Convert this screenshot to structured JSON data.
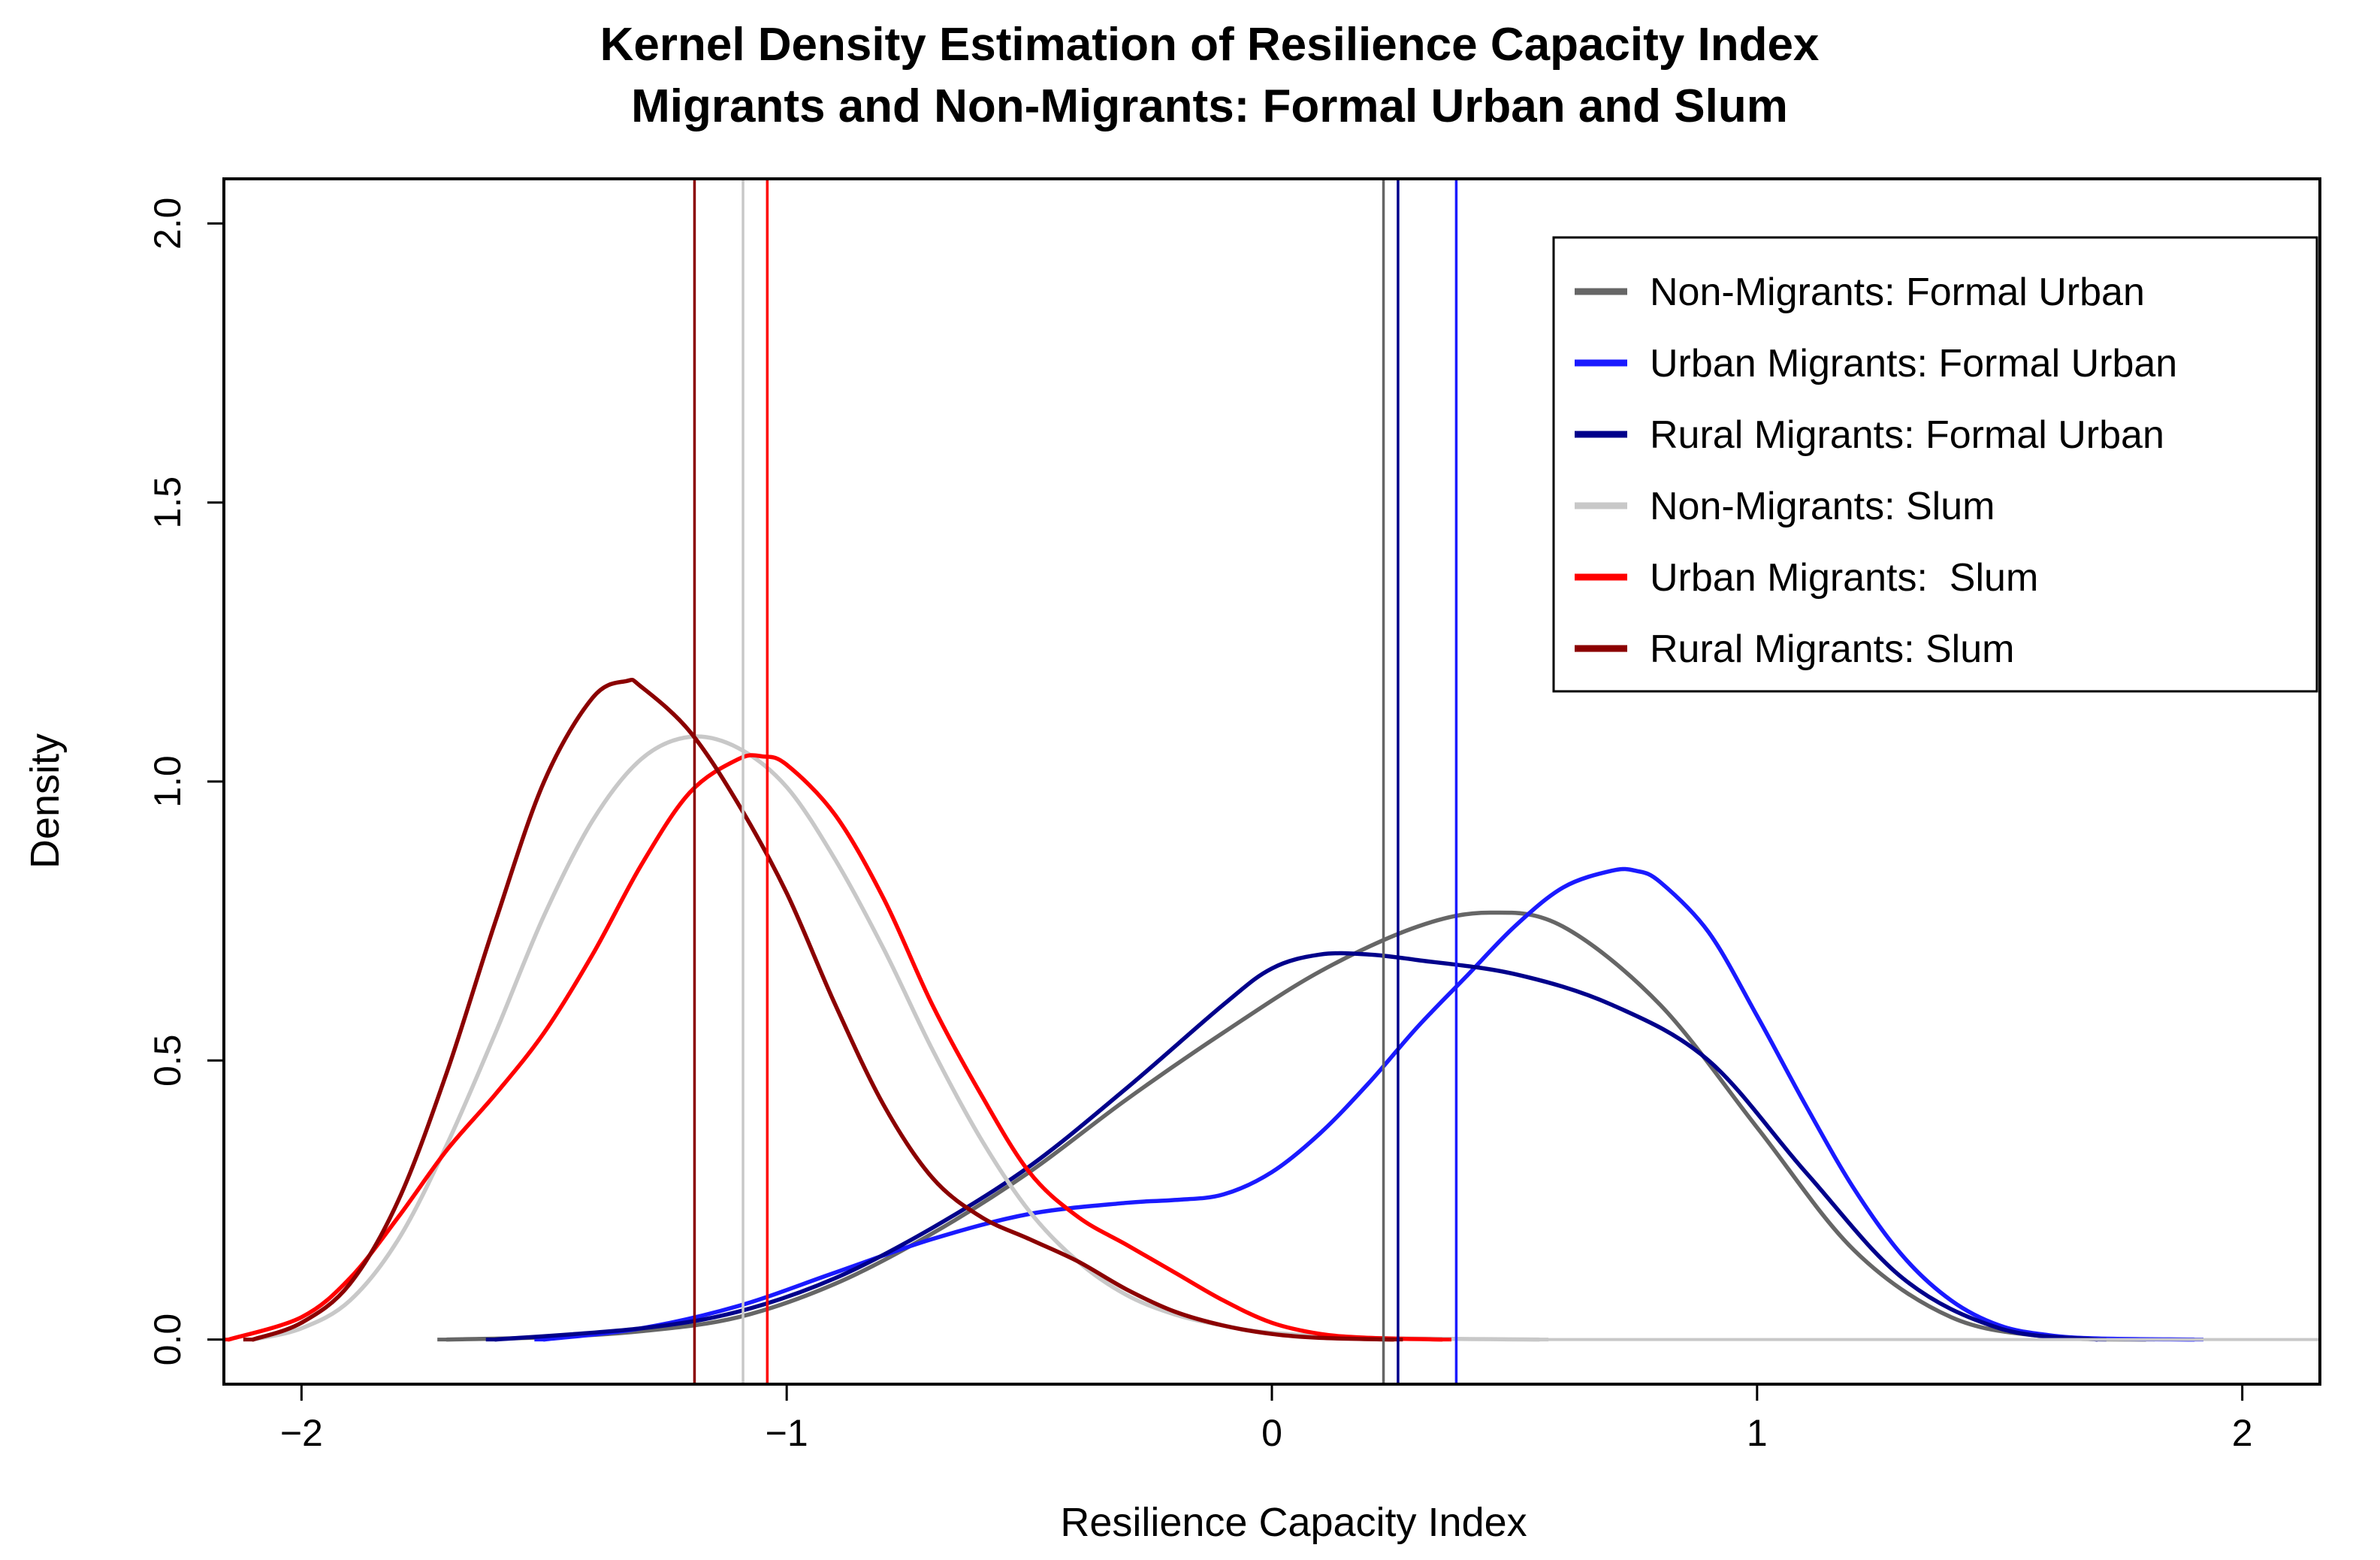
{
  "chart_data": {
    "type": "line",
    "title": "Kernel Density Estimation of Resilience Capacity Index",
    "subtitle": "Migrants and Non-Migrants: Formal Urban and Slum",
    "xlabel": "Resilience Capacity Index",
    "ylabel": "Density",
    "xlim": [
      -2.16,
      2.16
    ],
    "ylim": [
      -0.08,
      2.08
    ],
    "x_ticks": [
      -2,
      -1,
      0,
      1,
      2
    ],
    "x_tick_labels": [
      "−2",
      "−1",
      "0",
      "1",
      "2"
    ],
    "y_ticks": [
      0.0,
      0.5,
      1.0,
      1.5,
      2.0
    ],
    "y_tick_labels": [
      "0.0",
      "0.5",
      "1.0",
      "1.5",
      "2.0"
    ],
    "legend_position": "top-right",
    "series": [
      {
        "name": "Non-Migrants: Formal Urban",
        "color": "#666666",
        "mean": 0.23,
        "x": [
          -1.7,
          -1.5,
          -1.3,
          -1.1,
          -0.9,
          -0.7,
          -0.5,
          -0.3,
          -0.1,
          0.1,
          0.3,
          0.45,
          0.6,
          0.8,
          1.0,
          1.2,
          1.4,
          1.6,
          1.8
        ],
        "y": [
          0.0,
          0.004,
          0.015,
          0.04,
          0.1,
          0.19,
          0.3,
          0.43,
          0.55,
          0.66,
          0.74,
          0.765,
          0.74,
          0.6,
          0.38,
          0.16,
          0.04,
          0.005,
          0.0
        ]
      },
      {
        "name": "Urban Migrants: Formal Urban",
        "color": "#1a1aff",
        "mean": 0.38,
        "x": [
          -1.5,
          -1.3,
          -1.1,
          -0.9,
          -0.7,
          -0.5,
          -0.3,
          -0.2,
          -0.1,
          0.0,
          0.1,
          0.2,
          0.3,
          0.4,
          0.5,
          0.6,
          0.7,
          0.75,
          0.8,
          0.9,
          1.0,
          1.1,
          1.2,
          1.3,
          1.4,
          1.5,
          1.6,
          1.7,
          1.9
        ],
        "y": [
          0.0,
          0.02,
          0.06,
          0.12,
          0.18,
          0.225,
          0.245,
          0.25,
          0.26,
          0.3,
          0.37,
          0.46,
          0.56,
          0.65,
          0.74,
          0.81,
          0.84,
          0.84,
          0.82,
          0.73,
          0.58,
          0.42,
          0.27,
          0.15,
          0.07,
          0.025,
          0.008,
          0.002,
          0.0
        ]
      },
      {
        "name": "Rural Migrants: Formal Urban",
        "color": "#00008b",
        "mean": 0.26,
        "x": [
          -1.6,
          -1.3,
          -1.1,
          -0.9,
          -0.7,
          -0.5,
          -0.3,
          -0.1,
          0.0,
          0.1,
          0.2,
          0.3,
          0.5,
          0.7,
          0.9,
          1.1,
          1.3,
          1.5,
          1.7
        ],
        "y": [
          0.0,
          0.02,
          0.05,
          0.11,
          0.2,
          0.31,
          0.45,
          0.6,
          0.665,
          0.69,
          0.69,
          0.68,
          0.655,
          0.6,
          0.5,
          0.3,
          0.11,
          0.02,
          0.0
        ]
      },
      {
        "name": "Non-Migrants: Slum",
        "color": "#c8c8c8",
        "mean": -1.09,
        "x": [
          -2.1,
          -2.0,
          -1.9,
          -1.8,
          -1.7,
          -1.6,
          -1.5,
          -1.4,
          -1.3,
          -1.2,
          -1.1,
          -1.0,
          -0.9,
          -0.8,
          -0.7,
          -0.6,
          -0.5,
          -0.4,
          -0.3,
          -0.2,
          -0.1,
          0.0,
          0.2,
          0.55
        ],
        "y": [
          0.0,
          0.02,
          0.07,
          0.18,
          0.35,
          0.55,
          0.76,
          0.93,
          1.04,
          1.08,
          1.06,
          0.99,
          0.86,
          0.7,
          0.52,
          0.36,
          0.23,
          0.14,
          0.08,
          0.045,
          0.025,
          0.012,
          0.003,
          0.0
        ]
      },
      {
        "name": "Urban Migrants:  Slum",
        "color": "#ff0000",
        "mean": -1.04,
        "x": [
          -2.15,
          -2.0,
          -1.9,
          -1.8,
          -1.7,
          -1.6,
          -1.5,
          -1.4,
          -1.3,
          -1.2,
          -1.1,
          -1.05,
          -1.0,
          -0.9,
          -0.8,
          -0.7,
          -0.6,
          -0.5,
          -0.4,
          -0.3,
          -0.2,
          -0.1,
          0.0,
          0.1,
          0.2,
          0.35
        ],
        "y": [
          0.0,
          0.04,
          0.11,
          0.22,
          0.34,
          0.44,
          0.55,
          0.69,
          0.85,
          0.98,
          1.04,
          1.045,
          1.03,
          0.94,
          0.79,
          0.6,
          0.44,
          0.3,
          0.22,
          0.17,
          0.12,
          0.07,
          0.03,
          0.01,
          0.003,
          0.0
        ]
      },
      {
        "name": "Rural Migrants: Slum",
        "color": "#8b0000",
        "mean": -1.19,
        "x": [
          -2.1,
          -2.0,
          -1.9,
          -1.8,
          -1.7,
          -1.6,
          -1.5,
          -1.4,
          -1.33,
          -1.3,
          -1.2,
          -1.1,
          -1.0,
          -0.9,
          -0.8,
          -0.7,
          -0.6,
          -0.5,
          -0.4,
          -0.3,
          -0.2,
          -0.1,
          0.0,
          0.1,
          0.25
        ],
        "y": [
          0.0,
          0.03,
          0.1,
          0.25,
          0.48,
          0.75,
          1.0,
          1.15,
          1.18,
          1.17,
          1.09,
          0.96,
          0.8,
          0.6,
          0.42,
          0.29,
          0.22,
          0.18,
          0.14,
          0.09,
          0.05,
          0.025,
          0.01,
          0.003,
          0.0
        ]
      }
    ]
  }
}
